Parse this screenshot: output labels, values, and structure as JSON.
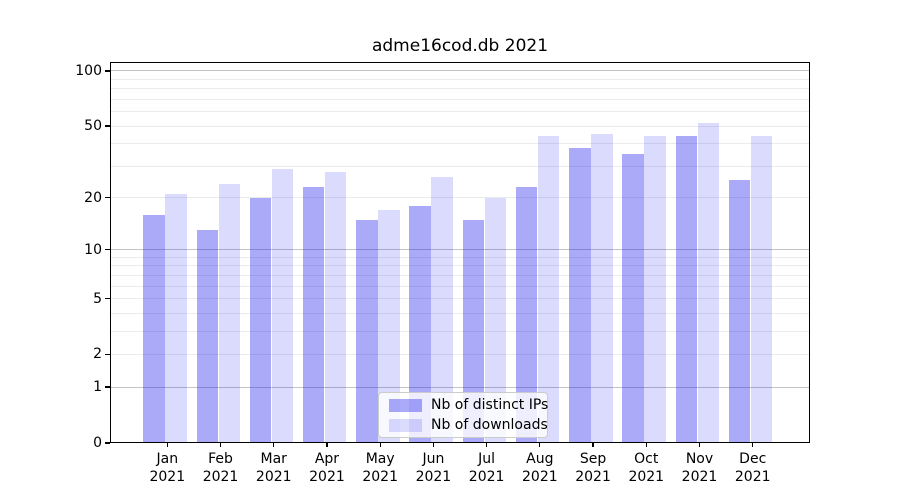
{
  "title": "adme16cod.db 2021",
  "chart_data": {
    "type": "bar",
    "title": "adme16cod.db 2021",
    "categories": [
      "Jan 2021",
      "Feb 2021",
      "Mar 2021",
      "Apr 2021",
      "May 2021",
      "Jun 2021",
      "Jul 2021",
      "Aug 2021",
      "Sep 2021",
      "Oct 2021",
      "Nov 2021",
      "Dec 2021"
    ],
    "series": [
      {
        "name": "Nb of distinct IPs",
        "color": "rgba(31,31,240,0.38)",
        "values": [
          16,
          13,
          20,
          23,
          15,
          18,
          15,
          23,
          38,
          35,
          44,
          25
        ]
      },
      {
        "name": "Nb of downloads",
        "color": "rgba(31,31,240,0.16)",
        "values": [
          21,
          24,
          29,
          28,
          17,
          26,
          20,
          44,
          45,
          44,
          52,
          44
        ]
      }
    ],
    "yscale": "log10(1+x)",
    "ylim": [
      0,
      112
    ],
    "y_ticks": [
      0,
      1,
      2,
      5,
      10,
      20,
      50,
      100
    ],
    "y_gridlines_major": [
      1,
      10,
      100
    ],
    "y_gridlines_minor": [
      2,
      3,
      4,
      5,
      6,
      7,
      8,
      9,
      20,
      30,
      40,
      50,
      60,
      70,
      80,
      90
    ],
    "xlabel": "",
    "ylabel": "",
    "grid": "on",
    "legend_position": "lower center"
  },
  "colors": {
    "bar_dark": "rgba(31,31,240,0.38)",
    "bar_light": "rgba(31,31,240,0.16)",
    "grid_major": "#c3c3c3",
    "grid_minor": "#ebebeb",
    "axis": "#000000",
    "legend_border": "#cccccc"
  }
}
